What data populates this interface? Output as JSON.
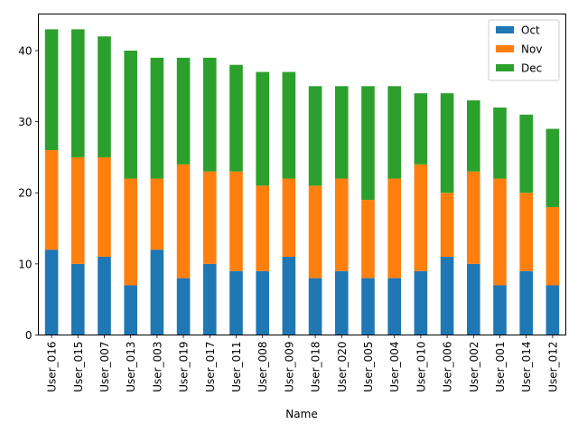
{
  "chart_data": {
    "type": "bar",
    "stacked": true,
    "xlabel": "Name",
    "ylabel": "",
    "title": "",
    "ylim": [
      0,
      45.15
    ],
    "yticks": [
      0,
      10,
      20,
      30,
      40
    ],
    "legend_position": "top-right",
    "grid": false,
    "categories": [
      "User_016",
      "User_015",
      "User_007",
      "User_013",
      "User_003",
      "User_019",
      "User_017",
      "User_011",
      "User_008",
      "User_009",
      "User_018",
      "User_020",
      "User_005",
      "User_004",
      "User_010",
      "User_006",
      "User_002",
      "User_001",
      "User_014",
      "User_012"
    ],
    "series": [
      {
        "name": "Oct",
        "color": "#1f77b4",
        "values": [
          12,
          10,
          11,
          7,
          12,
          8,
          10,
          9,
          9,
          11,
          8,
          9,
          8,
          8,
          9,
          11,
          10,
          7,
          9,
          7
        ]
      },
      {
        "name": "Nov",
        "color": "#ff7f0e",
        "values": [
          14,
          15,
          14,
          15,
          10,
          16,
          13,
          14,
          12,
          11,
          13,
          13,
          11,
          14,
          15,
          9,
          13,
          15,
          11,
          11
        ]
      },
      {
        "name": "Dec",
        "color": "#2ca02c",
        "values": [
          17,
          18,
          17,
          18,
          17,
          15,
          16,
          15,
          16,
          15,
          14,
          13,
          16,
          13,
          10,
          14,
          10,
          10,
          11,
          11
        ]
      }
    ]
  }
}
